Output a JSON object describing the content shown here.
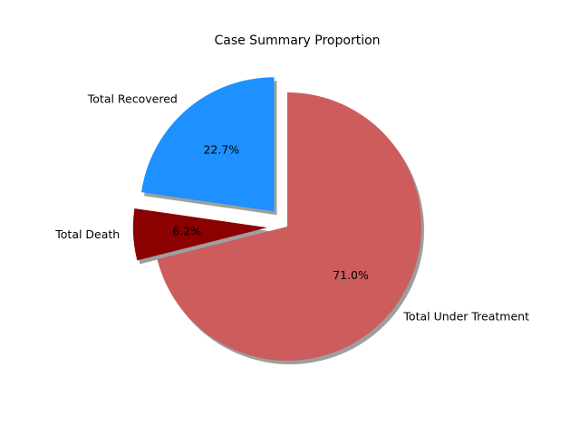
{
  "chart_data": {
    "type": "pie",
    "title": "Case Summary Proportion",
    "slices": [
      {
        "label": "Total Recovered",
        "percent": 22.7,
        "color": "#1e90ff",
        "exploded": true
      },
      {
        "label": "Total Death",
        "percent": 6.2,
        "color": "#8b0000",
        "exploded": true
      },
      {
        "label": "Total Under Treatment",
        "percent": 71.0,
        "color": "#cd5c5c",
        "exploded": false
      }
    ],
    "percent_labels": [
      "22.7%",
      "6.2%",
      "71.0%"
    ],
    "shadow": true,
    "start_angle_deg": 90,
    "direction": "counterclockwise"
  }
}
